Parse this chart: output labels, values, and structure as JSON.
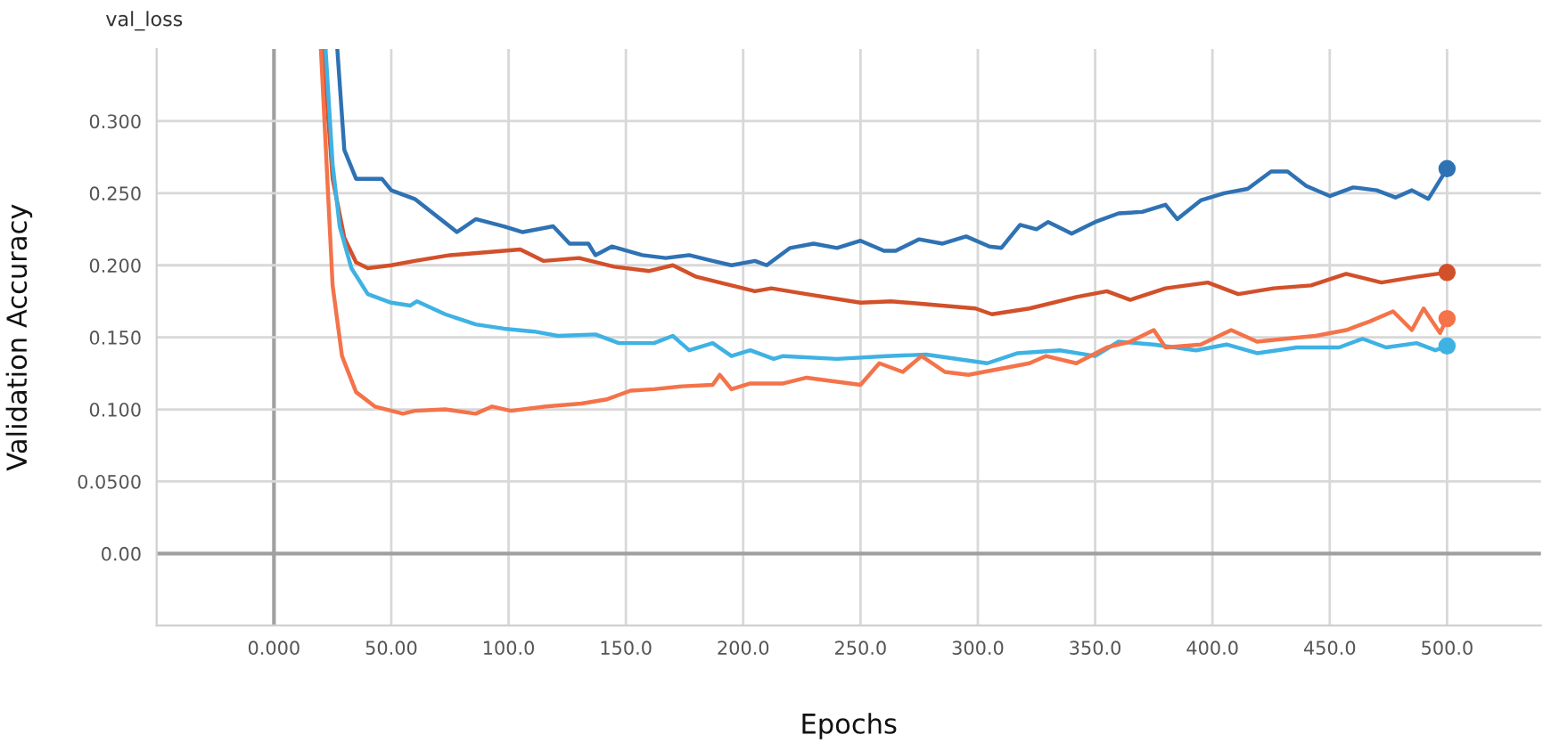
{
  "chart_data": {
    "type": "line",
    "title": "val_loss",
    "xlabel": "Epochs",
    "ylabel": "Validation Accuracy",
    "xlim": [
      -50,
      540
    ],
    "ylim": [
      -0.05,
      0.35
    ],
    "xticks": [
      {
        "value": 0,
        "label": "0.000"
      },
      {
        "value": 50,
        "label": "50.00"
      },
      {
        "value": 100,
        "label": "100.0"
      },
      {
        "value": 150,
        "label": "150.0"
      },
      {
        "value": 200,
        "label": "200.0"
      },
      {
        "value": 250,
        "label": "250.0"
      },
      {
        "value": 300,
        "label": "300.0"
      },
      {
        "value": 350,
        "label": "350.0"
      },
      {
        "value": 400,
        "label": "400.0"
      },
      {
        "value": 450,
        "label": "450.0"
      },
      {
        "value": 500,
        "label": "500.0"
      }
    ],
    "yticks": [
      {
        "value": 0,
        "label": "0.00"
      },
      {
        "value": 0.05,
        "label": "0.0500"
      },
      {
        "value": 0.1,
        "label": "0.100"
      },
      {
        "value": 0.15,
        "label": "0.150"
      },
      {
        "value": 0.2,
        "label": "0.200"
      },
      {
        "value": 0.25,
        "label": "0.250"
      },
      {
        "value": 0.3,
        "label": "0.300"
      }
    ],
    "grid": true,
    "line_style": "solid",
    "series": [
      {
        "color": "#2f72b4",
        "x": [
          27,
          30,
          35,
          46,
          50,
          60,
          78,
          86,
          98,
          106,
          119,
          126,
          134,
          137,
          144,
          157,
          167,
          177,
          187,
          195,
          205,
          210,
          220,
          230,
          240,
          250,
          260,
          265,
          275,
          285,
          295,
          305,
          310,
          318,
          325,
          330,
          340,
          350,
          360,
          370,
          380,
          385,
          395,
          405,
          415,
          425,
          432,
          440,
          450,
          460,
          470,
          478,
          485,
          492,
          500
        ],
        "values": [
          0.35,
          0.28,
          0.26,
          0.26,
          0.252,
          0.246,
          0.223,
          0.232,
          0.227,
          0.223,
          0.227,
          0.215,
          0.215,
          0.207,
          0.213,
          0.207,
          0.205,
          0.207,
          0.203,
          0.2,
          0.203,
          0.2,
          0.212,
          0.215,
          0.212,
          0.217,
          0.21,
          0.21,
          0.218,
          0.215,
          0.22,
          0.213,
          0.212,
          0.228,
          0.225,
          0.23,
          0.222,
          0.23,
          0.236,
          0.237,
          0.242,
          0.232,
          0.245,
          0.25,
          0.253,
          0.265,
          0.265,
          0.255,
          0.248,
          0.254,
          0.252,
          0.247,
          0.252,
          0.246,
          0.267
        ]
      },
      {
        "color": "#d2502a",
        "x": [
          21,
          25,
          30,
          35,
          40,
          50,
          60,
          75,
          90,
          105,
          115,
          130,
          145,
          160,
          170,
          180,
          195,
          205,
          212,
          227,
          250,
          263,
          278,
          299,
          306,
          322,
          342,
          355,
          365,
          380,
          398,
          411,
          426,
          442,
          457,
          472,
          487,
          500
        ],
        "values": [
          0.35,
          0.26,
          0.219,
          0.202,
          0.198,
          0.2,
          0.203,
          0.207,
          0.209,
          0.211,
          0.203,
          0.205,
          0.199,
          0.196,
          0.2,
          0.192,
          0.186,
          0.182,
          0.184,
          0.18,
          0.174,
          0.175,
          0.173,
          0.17,
          0.166,
          0.17,
          0.178,
          0.182,
          0.176,
          0.184,
          0.188,
          0.18,
          0.184,
          0.186,
          0.194,
          0.188,
          0.192,
          0.195
        ]
      },
      {
        "color": "#3fb2e4",
        "x": [
          22,
          25,
          28,
          33,
          40,
          50,
          58,
          61,
          73,
          86,
          98,
          111,
          121,
          137,
          147,
          162,
          170,
          177,
          187,
          195,
          203,
          213,
          217,
          240,
          261,
          278,
          304,
          317,
          335,
          350,
          360,
          375,
          393,
          406,
          419,
          436,
          454,
          464,
          474,
          487,
          495,
          500
        ],
        "values": [
          0.35,
          0.27,
          0.227,
          0.198,
          0.18,
          0.174,
          0.172,
          0.175,
          0.166,
          0.159,
          0.156,
          0.154,
          0.151,
          0.152,
          0.146,
          0.146,
          0.151,
          0.141,
          0.146,
          0.137,
          0.141,
          0.135,
          0.137,
          0.135,
          0.137,
          0.138,
          0.132,
          0.139,
          0.141,
          0.137,
          0.147,
          0.145,
          0.141,
          0.145,
          0.139,
          0.143,
          0.143,
          0.149,
          0.143,
          0.146,
          0.141,
          0.144
        ]
      },
      {
        "color": "#f4734a",
        "x": [
          20,
          25,
          29,
          35,
          43,
          55,
          60,
          73,
          86,
          93,
          101,
          116,
          131,
          142,
          152,
          162,
          174,
          187,
          190,
          195,
          203,
          213,
          217,
          227,
          250,
          258,
          268,
          276,
          286,
          296,
          309,
          322,
          329,
          342,
          355,
          365,
          375,
          380,
          395,
          408,
          419,
          431,
          444,
          457,
          467,
          477,
          485,
          490,
          497,
          500
        ],
        "values": [
          0.35,
          0.186,
          0.137,
          0.112,
          0.102,
          0.097,
          0.099,
          0.1,
          0.097,
          0.102,
          0.099,
          0.102,
          0.104,
          0.107,
          0.113,
          0.114,
          0.116,
          0.117,
          0.124,
          0.114,
          0.118,
          0.118,
          0.118,
          0.122,
          0.117,
          0.132,
          0.126,
          0.137,
          0.126,
          0.124,
          0.128,
          0.132,
          0.137,
          0.132,
          0.143,
          0.147,
          0.155,
          0.143,
          0.145,
          0.155,
          0.147,
          0.149,
          0.151,
          0.155,
          0.161,
          0.168,
          0.155,
          0.17,
          0.153,
          0.163
        ]
      },
      {
        "type": "scatter",
        "color": "#2f72b4",
        "x": [
          500
        ],
        "values": [
          0.267
        ]
      },
      {
        "type": "scatter",
        "color": "#d2502a",
        "x": [
          500
        ],
        "values": [
          0.195
        ]
      },
      {
        "type": "scatter",
        "color": "#3fb2e4",
        "x": [
          500
        ],
        "values": [
          0.144
        ]
      },
      {
        "type": "scatter",
        "color": "#f4734a",
        "x": [
          500
        ],
        "values": [
          0.163
        ]
      }
    ]
  }
}
